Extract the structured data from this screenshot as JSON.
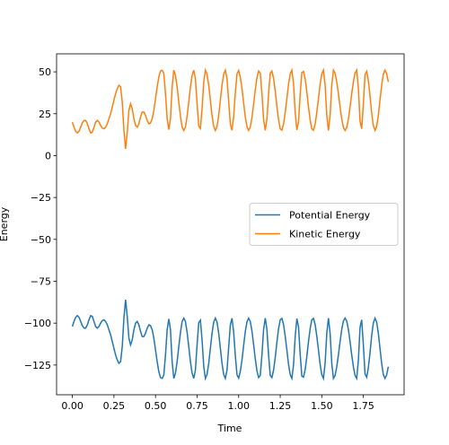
{
  "chart_data": {
    "type": "line",
    "xlabel": "Time",
    "ylabel": "Energy",
    "legend": "center right",
    "xlim": [
      -0.095,
      1.995
    ],
    "ylim": [
      -142.75,
      60.75
    ],
    "xticks": [
      {
        "value": 0,
        "label": "0.00"
      },
      {
        "value": 0.25,
        "label": "0.25"
      },
      {
        "value": 0.5,
        "label": "0.50"
      },
      {
        "value": 0.75,
        "label": "0.75"
      },
      {
        "value": 1,
        "label": "1.00"
      },
      {
        "value": 1.25,
        "label": "1.25"
      },
      {
        "value": 1.5,
        "label": "1.50"
      },
      {
        "value": 1.75,
        "label": "1.75"
      }
    ],
    "yticks": [
      {
        "value": -125,
        "label": "−125"
      },
      {
        "value": -100,
        "label": "−100"
      },
      {
        "value": -75,
        "label": "−75"
      },
      {
        "value": -50,
        "label": "−50"
      },
      {
        "value": -25,
        "label": "−25"
      },
      0,
      25,
      50
    ],
    "x": [
      0,
      0.01,
      0.02,
      0.03,
      0.04,
      0.05,
      0.06,
      0.07,
      0.08,
      0.09,
      0.1,
      0.11,
      0.12,
      0.13,
      0.14,
      0.15,
      0.16,
      0.17,
      0.18,
      0.19,
      0.2,
      0.21,
      0.22,
      0.23,
      0.24,
      0.25,
      0.26,
      0.27,
      0.28,
      0.29,
      0.3,
      0.31,
      0.32,
      0.33,
      0.34,
      0.35,
      0.36,
      0.37,
      0.38,
      0.39,
      0.4,
      0.41,
      0.42,
      0.43,
      0.44,
      0.45,
      0.46,
      0.47,
      0.48,
      0.49,
      0.5,
      0.51,
      0.52,
      0.53,
      0.54,
      0.55,
      0.56,
      0.57,
      0.58,
      0.59,
      0.6,
      0.61,
      0.62,
      0.63,
      0.64,
      0.65,
      0.66,
      0.67,
      0.68,
      0.69,
      0.7,
      0.71,
      0.72,
      0.73,
      0.74,
      0.75,
      0.76,
      0.77,
      0.78,
      0.79,
      0.8,
      0.81,
      0.82,
      0.83,
      0.84,
      0.85,
      0.86,
      0.87,
      0.88,
      0.89,
      0.9,
      0.91,
      0.92,
      0.93,
      0.94,
      0.95,
      0.96,
      0.97,
      0.98,
      0.99,
      1,
      1.01,
      1.02,
      1.03,
      1.04,
      1.05,
      1.06,
      1.07,
      1.08,
      1.09,
      1.1,
      1.11,
      1.12,
      1.13,
      1.14,
      1.15,
      1.16,
      1.17,
      1.18,
      1.19,
      1.2,
      1.21,
      1.22,
      1.23,
      1.24,
      1.25,
      1.26,
      1.27,
      1.28,
      1.29,
      1.3,
      1.31,
      1.32,
      1.33,
      1.34,
      1.35,
      1.36,
      1.37,
      1.38,
      1.39,
      1.4,
      1.41,
      1.42,
      1.43,
      1.44,
      1.45,
      1.46,
      1.47,
      1.48,
      1.49,
      1.5,
      1.51,
      1.52,
      1.53,
      1.54,
      1.55,
      1.56,
      1.57,
      1.58,
      1.59,
      1.6,
      1.61,
      1.62,
      1.63,
      1.64,
      1.65,
      1.66,
      1.67,
      1.68,
      1.69,
      1.7,
      1.71,
      1.72,
      1.73,
      1.74,
      1.75,
      1.76,
      1.77,
      1.78,
      1.79,
      1.8,
      1.81,
      1.82,
      1.83,
      1.84,
      1.85,
      1.86,
      1.87,
      1.88,
      1.89,
      1.9
    ],
    "series": [
      {
        "name": "Potential Energy",
        "color": "#1f77b4",
        "values": [
          -102,
          -99,
          -96.5,
          -95.5,
          -96.5,
          -99,
          -101.5,
          -103,
          -103,
          -101,
          -98,
          -95.5,
          -96,
          -99,
          -102,
          -103,
          -102,
          -100,
          -98.5,
          -98,
          -99,
          -101,
          -104,
          -107,
          -111,
          -115,
          -119,
          -122,
          -124,
          -123,
          -114,
          -97,
          -86,
          -96,
          -109,
          -113,
          -110,
          -104,
          -100,
          -99,
          -101,
          -105,
          -108,
          -108,
          -106,
          -103,
          -101,
          -101.5,
          -104,
          -109,
          -116,
          -123,
          -129,
          -132.5,
          -133,
          -131,
          -119,
          -104,
          -97.5,
          -104,
          -123,
          -133,
          -129.8,
          -123,
          -114,
          -105.5,
          -99,
          -97,
          -99,
          -105.5,
          -114,
          -123,
          -129.8,
          -133,
          -128,
          -113,
          -99.7,
          -98.2,
          -110,
          -125.8,
          -133,
          -130.6,
          -124,
          -115,
          -106,
          -99.4,
          -97,
          -99.4,
          -106,
          -115,
          -124,
          -130.6,
          -133,
          -128,
          -114.5,
          -101,
          -97.1,
          -105.3,
          -119.5,
          -130.8,
          -132.8,
          -128.9,
          -122,
          -113.4,
          -105,
          -99.2,
          -97,
          -99,
          -104.7,
          -112.8,
          -121.3,
          -128.5,
          -132.5,
          -131.2,
          -119,
          -103.8,
          -97,
          -103.8,
          -119,
          -131.2,
          -132.5,
          -128,
          -120.6,
          -111.4,
          -103.3,
          -98,
          -97.2,
          -100.8,
          -107.8,
          -116,
          -124.7,
          -130.7,
          -133,
          -125,
          -108,
          -97.3,
          -102.2,
          -118.4,
          -131.6,
          -132.2,
          -127.8,
          -120,
          -111,
          -103.3,
          -98,
          -97.2,
          -100.8,
          -107.8,
          -116,
          -124.7,
          -130.7,
          -133,
          -124,
          -106,
          -97,
          -106,
          -124,
          -133,
          -131.2,
          -126,
          -119,
          -111,
          -103.8,
          -98.8,
          -97,
          -98.8,
          -103.8,
          -111,
          -119,
          -126,
          -131.2,
          -133,
          -122.2,
          -102.6,
          -98,
          -113,
          -130.3,
          -132.3,
          -126.7,
          -117.7,
          -107.5,
          -99.9,
          -97,
          -99.4,
          -106,
          -115,
          -124,
          -130.6,
          -133,
          -131,
          -126
        ]
      },
      {
        "name": "Kinetic Energy",
        "color": "#ff7f0e",
        "values": [
          20,
          17,
          14.5,
          13.5,
          14.5,
          17,
          19.5,
          21,
          21,
          19,
          16,
          13.5,
          14,
          17,
          20,
          21,
          20,
          18,
          16.5,
          16,
          17,
          19,
          22,
          25,
          29,
          33,
          37,
          40,
          42,
          41,
          32,
          15,
          4,
          14,
          27,
          31,
          28,
          22,
          18,
          17,
          19,
          23,
          26,
          26,
          24,
          21,
          19,
          19.5,
          22,
          27,
          34,
          41,
          47,
          50.5,
          51,
          49,
          37,
          22,
          15.5,
          22,
          41,
          51,
          47.8,
          41,
          32,
          23.5,
          17,
          15,
          17,
          23.5,
          32,
          41,
          47.8,
          51,
          46,
          31,
          17.7,
          16.2,
          28,
          43.8,
          51,
          48.6,
          42,
          33,
          24,
          17.4,
          15,
          17.4,
          24,
          33,
          42,
          48.6,
          51,
          46,
          32.5,
          19,
          15.1,
          23.3,
          37.5,
          48.8,
          50.8,
          46.9,
          40,
          31.4,
          23,
          17.2,
          15,
          17,
          22.7,
          30.8,
          39.3,
          46.5,
          50.5,
          49.2,
          37,
          21.8,
          15,
          21.8,
          37,
          49.2,
          50.5,
          46,
          38.6,
          29.4,
          21.3,
          16,
          15.2,
          18.8,
          25.8,
          34,
          42.7,
          48.7,
          51,
          43,
          26,
          15.3,
          20.2,
          36.4,
          49.6,
          50.2,
          45.8,
          38,
          29,
          21.3,
          16,
          15.2,
          18.8,
          25.8,
          34,
          42.7,
          48.7,
          51,
          42,
          24,
          15,
          24,
          42,
          51,
          49.2,
          44,
          37,
          29,
          21.8,
          16.8,
          15,
          16.8,
          21.8,
          29,
          37,
          44,
          49.2,
          51,
          40.2,
          20.6,
          16,
          31,
          48.3,
          50.3,
          44.7,
          35.7,
          25.5,
          17.9,
          15,
          17.4,
          24,
          33,
          42,
          48.6,
          51,
          49,
          44
        ]
      }
    ]
  }
}
